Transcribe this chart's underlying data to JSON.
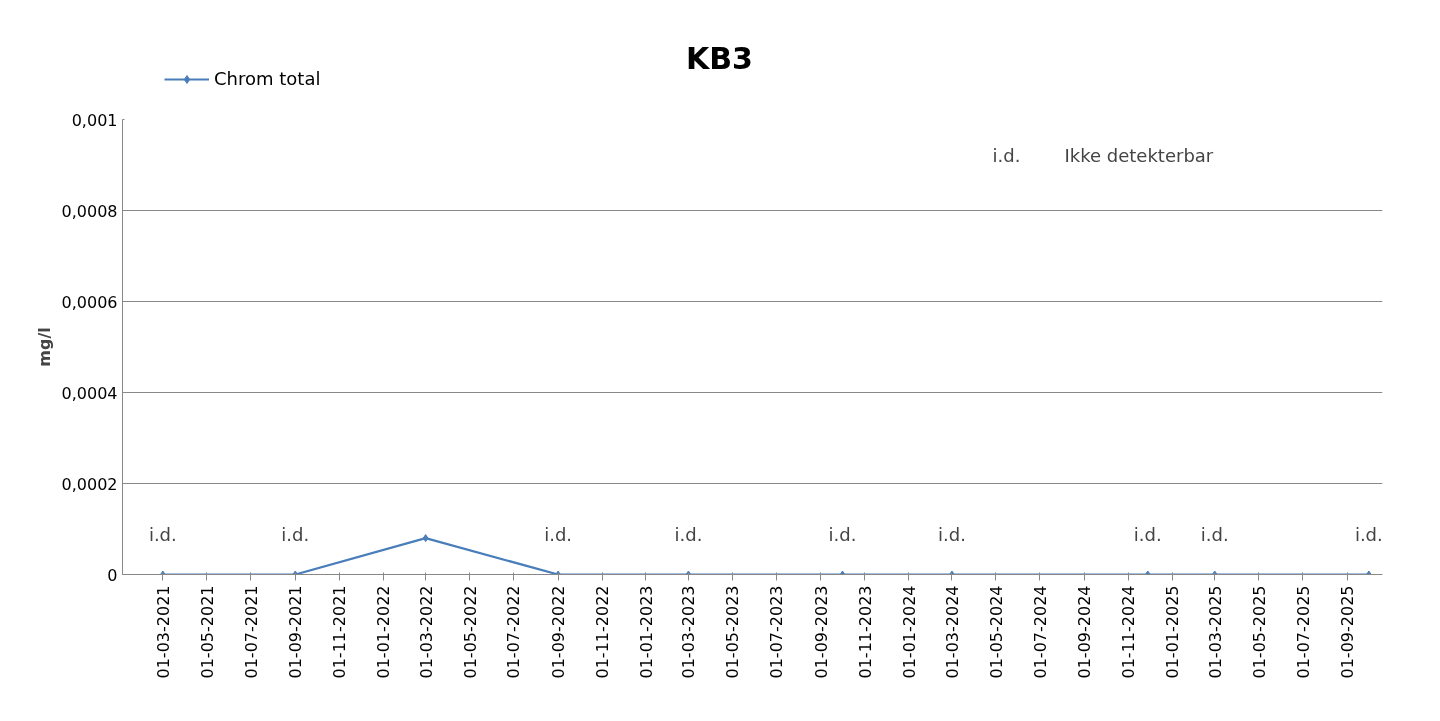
{
  "chart_data": {
    "type": "line",
    "title": "KB3",
    "ylabel": "mg/l",
    "x": [
      "2021-03-01",
      "2021-09-01",
      "2022-03-01",
      "2022-09-01",
      "2023-03-01",
      "2023-10-01",
      "2024-03-01",
      "2024-11-28",
      "2025-03-01",
      "2025-10-01"
    ],
    "series": [
      {
        "name": "Chrom total",
        "color": "#4a7ebb",
        "values": [
          0,
          0,
          8e-05,
          0,
          0,
          0,
          0,
          0,
          0,
          0
        ]
      }
    ],
    "xlim": [
      "2021-01-04",
      "2025-10-20"
    ],
    "xticks": [
      {
        "value": "2021-03-01",
        "label": "01-03-2021"
      },
      {
        "value": "2021-05-01",
        "label": "01-05-2021"
      },
      {
        "value": "2021-07-01",
        "label": "01-07-2021"
      },
      {
        "value": "2021-09-01",
        "label": "01-09-2021"
      },
      {
        "value": "2021-11-01",
        "label": "01-11-2021"
      },
      {
        "value": "2022-01-01",
        "label": "01-01-2022"
      },
      {
        "value": "2022-03-01",
        "label": "01-03-2022"
      },
      {
        "value": "2022-05-01",
        "label": "01-05-2022"
      },
      {
        "value": "2022-07-01",
        "label": "01-07-2022"
      },
      {
        "value": "2022-09-01",
        "label": "01-09-2022"
      },
      {
        "value": "2022-11-01",
        "label": "01-11-2022"
      },
      {
        "value": "2023-01-01",
        "label": "01-01-2023"
      },
      {
        "value": "2023-03-01",
        "label": "01-03-2023"
      },
      {
        "value": "2023-05-01",
        "label": "01-05-2023"
      },
      {
        "value": "2023-07-01",
        "label": "01-07-2023"
      },
      {
        "value": "2023-09-01",
        "label": "01-09-2023"
      },
      {
        "value": "2023-11-01",
        "label": "01-11-2023"
      },
      {
        "value": "2024-01-01",
        "label": "01-01-2024"
      },
      {
        "value": "2024-03-01",
        "label": "01-03-2024"
      },
      {
        "value": "2024-05-01",
        "label": "01-05-2024"
      },
      {
        "value": "2024-07-01",
        "label": "01-07-2024"
      },
      {
        "value": "2024-09-01",
        "label": "01-09-2024"
      },
      {
        "value": "2024-11-01",
        "label": "01-11-2024"
      },
      {
        "value": "2025-01-01",
        "label": "01-01-2025"
      },
      {
        "value": "2025-03-01",
        "label": "01-03-2025"
      },
      {
        "value": "2025-05-01",
        "label": "01-05-2025"
      },
      {
        "value": "2025-07-01",
        "label": "01-07-2025"
      },
      {
        "value": "2025-09-01",
        "label": "01-09-2025"
      }
    ],
    "ylim": [
      0,
      0.001
    ],
    "yticks": [
      {
        "value": 0,
        "label": "0"
      },
      {
        "value": 0.0002,
        "label": "0,0002"
      },
      {
        "value": 0.0004,
        "label": "0,0004"
      },
      {
        "value": 0.0006,
        "label": "0,0006"
      },
      {
        "value": 0.0008,
        "label": "0,0008"
      },
      {
        "value": 0.001,
        "label": "0,001"
      }
    ],
    "grid": "y",
    "legend": "top left",
    "marker": "diamond",
    "line_style": "solid",
    "annotations": [
      {
        "text": "i.d.",
        "x": "2021-03-01",
        "y": 0
      },
      {
        "text": "i.d.",
        "x": "2021-09-01",
        "y": 0
      },
      {
        "text": "i.d.",
        "x": "2022-09-01",
        "y": 0
      },
      {
        "text": "i.d.",
        "x": "2023-03-01",
        "y": 0
      },
      {
        "text": "i.d.",
        "x": "2023-10-01",
        "y": 0
      },
      {
        "text": "i.d.",
        "x": "2024-03-01",
        "y": 0
      },
      {
        "text": "i.d.",
        "x": "2024-11-28",
        "y": 0
      },
      {
        "text": "i.d.",
        "x": "2025-03-01",
        "y": 0
      },
      {
        "text": "i.d.",
        "x": "2025-10-01",
        "y": 0
      },
      "i.d.",
      "Ikke detekterbar"
    ]
  }
}
